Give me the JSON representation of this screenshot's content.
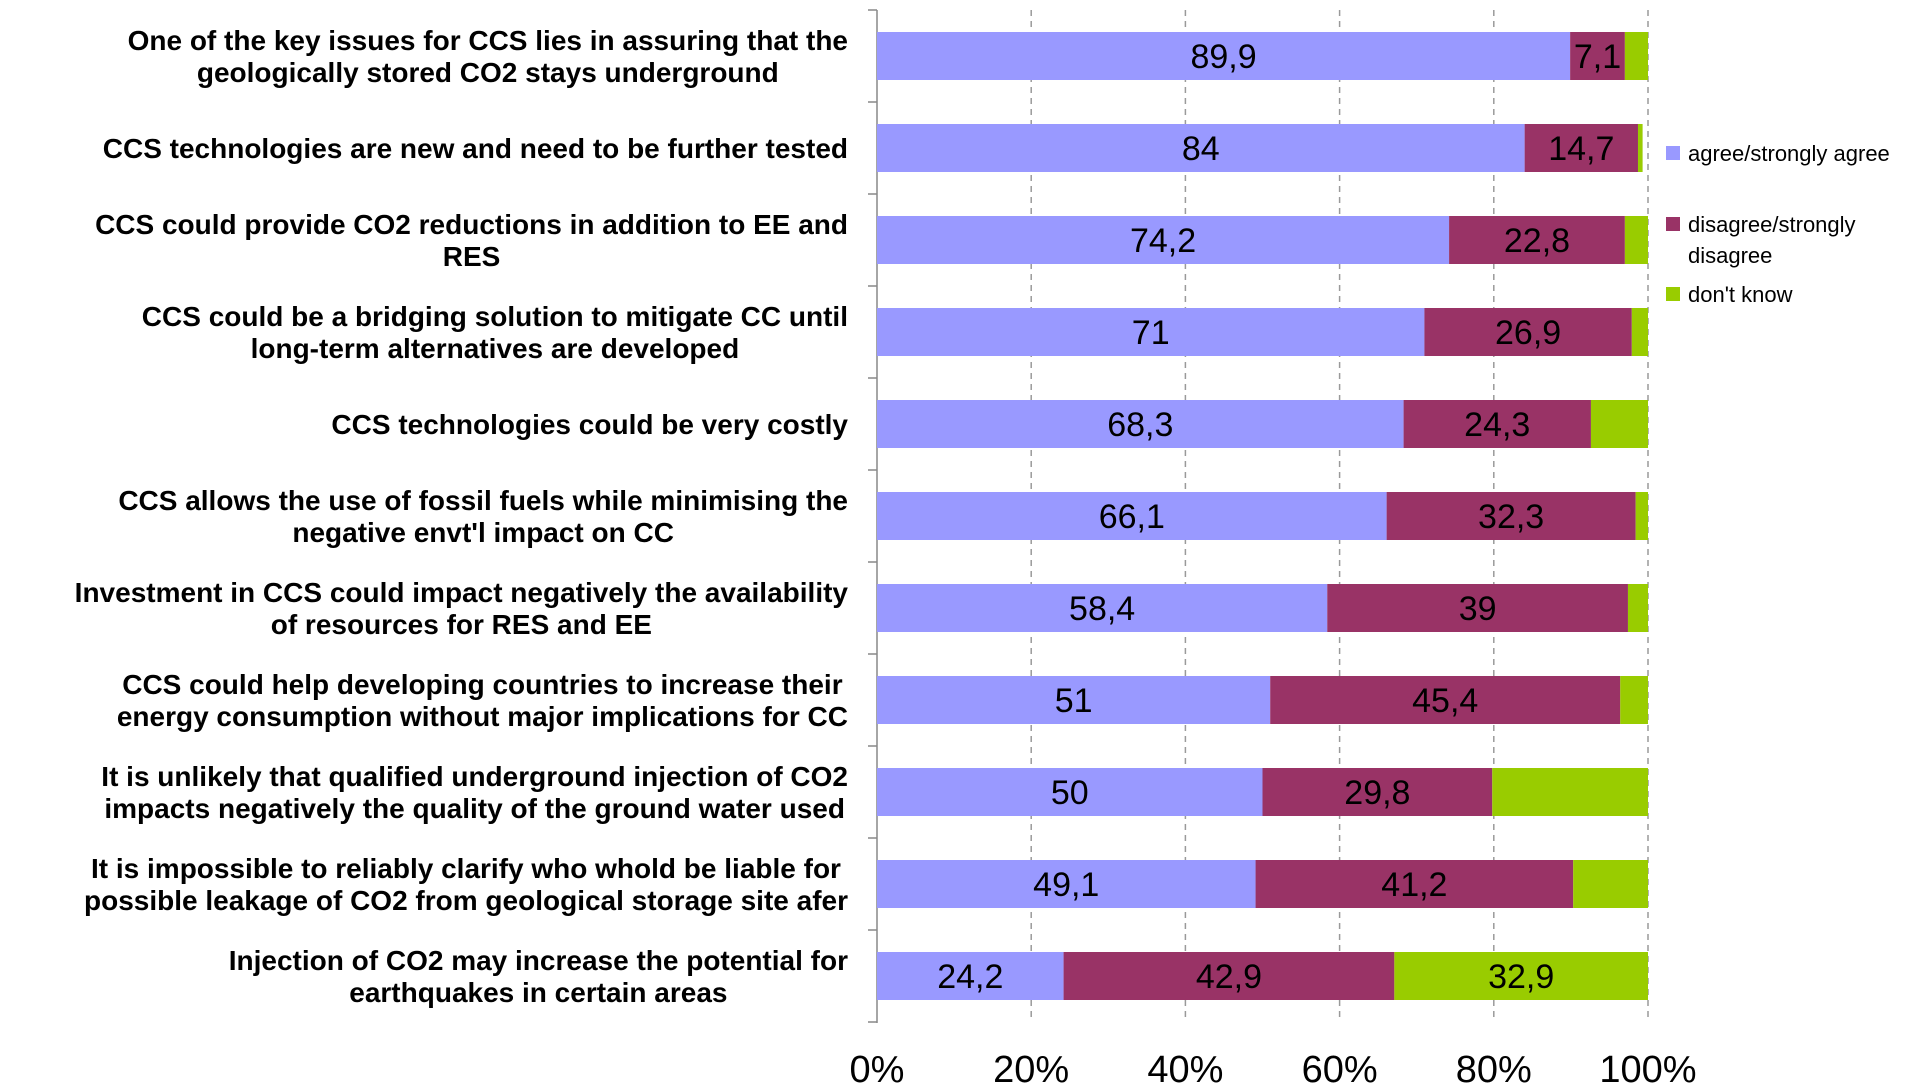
{
  "chart_data": {
    "type": "bar",
    "orientation": "horizontal",
    "stacked": true,
    "categories": [
      [
        "One of the key issues for CCS lies in assuring that the",
        "geologically stored CO2 stays underground"
      ],
      [
        "CCS technologies are new and need to be further tested"
      ],
      [
        "CCS could provide CO2 reductions in addition to EE and",
        "RES"
      ],
      [
        "CCS could be a bridging solution to mitigate CC until",
        "long-term alternatives are developed"
      ],
      [
        "CCS technologies could be very costly"
      ],
      [
        "CCS allows the use of fossil fuels while minimising the",
        "negative envt'l impact on CC"
      ],
      [
        "Investment in CCS could impact negatively the availability",
        "of resources for RES and EE"
      ],
      [
        "CCS could help developing countries to increase their",
        "energy consumption without major implications for CC"
      ],
      [
        "It is unlikely that qualified underground injection of CO2",
        "impacts negatively the quality of the ground water used"
      ],
      [
        "It is impossible to reliably clarify who whold be liable for",
        "possible leakage of CO2 from geological storage site afer"
      ],
      [
        "Injection of CO2 may increase the potential for",
        "earthquakes in certain areas"
      ]
    ],
    "series": [
      {
        "name": "agree/strongly agree",
        "color": "#9999ff",
        "values": [
          89.9,
          84,
          74.2,
          71,
          68.3,
          66.1,
          58.4,
          51,
          50,
          49.1,
          24.2
        ],
        "labels": [
          "89,9",
          "84",
          "74,2",
          "71",
          "68,3",
          "66,1",
          "58,4",
          "51",
          "50",
          "49,1",
          "24,2"
        ]
      },
      {
        "name": "disagree/strongly disagree",
        "color": "#993366",
        "values": [
          7.1,
          14.7,
          22.8,
          26.9,
          24.3,
          32.3,
          39,
          45.4,
          29.8,
          41.2,
          42.9
        ],
        "labels": [
          "7,1",
          "14,7",
          "22,8",
          "26,9",
          "24,3",
          "32,3",
          "39",
          "45,4",
          "29,8",
          "41,2",
          "42,9"
        ]
      },
      {
        "name": "don't know",
        "color": "#99cc00",
        "values": [
          3.0,
          0.6,
          3.0,
          2.1,
          7.4,
          1.6,
          2.6,
          3.6,
          20.2,
          9.7,
          32.9
        ],
        "labels": [
          "",
          "",
          "",
          "",
          "",
          "",
          "",
          "",
          "",
          "",
          "32,9"
        ]
      }
    ],
    "xlim": [
      0,
      100
    ],
    "xticks": [
      "0%",
      "20%",
      "40%",
      "60%",
      "80%",
      "100%"
    ],
    "grid": "vertical dashed",
    "legend": {
      "position": "right",
      "entries": [
        [
          "agree/strongly agree"
        ],
        [
          "disagree/strongly",
          "disagree"
        ],
        [
          "don't know"
        ]
      ]
    },
    "title": "",
    "xlabel": "",
    "ylabel": ""
  }
}
